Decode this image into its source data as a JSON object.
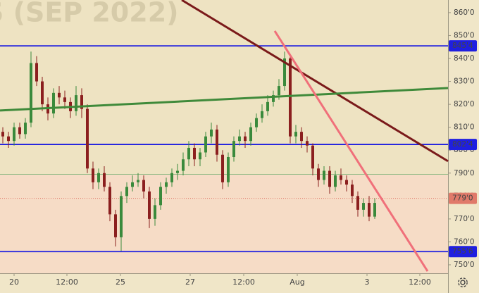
{
  "chart_data": {
    "type": "candlestick",
    "title": "S (SEP 2022)",
    "x": [
      1,
      3,
      5,
      7,
      9,
      11,
      13,
      15,
      17,
      19,
      21,
      23,
      25,
      27,
      29,
      31,
      33,
      35,
      37,
      39,
      41,
      43,
      45,
      47,
      49,
      51,
      53,
      55,
      57,
      59,
      61,
      63,
      65,
      67,
      69,
      71,
      73,
      75,
      77,
      79,
      81,
      83,
      85,
      87,
      89,
      91,
      93,
      95,
      97,
      99,
      101,
      103,
      105,
      107,
      109,
      111,
      113,
      115,
      117,
      119,
      121,
      123,
      125,
      127,
      129,
      131,
      133
    ],
    "open": [
      808,
      806,
      804,
      810,
      807,
      812,
      838,
      830,
      820,
      816,
      825,
      823,
      821,
      817,
      824,
      818,
      792,
      786,
      790,
      784,
      772,
      762,
      780,
      784,
      786,
      787,
      782,
      770,
      776,
      784,
      786,
      790,
      791,
      796,
      801,
      796,
      799,
      806,
      809,
      798,
      786,
      797,
      804,
      806,
      804,
      810,
      814,
      817,
      821,
      824,
      828,
      840,
      806,
      808,
      804,
      802,
      792,
      787,
      791,
      784,
      789,
      787,
      785,
      780,
      774,
      777,
      771
    ],
    "close": [
      806,
      804,
      810,
      807,
      812,
      838,
      830,
      820,
      816,
      825,
      823,
      821,
      817,
      824,
      818,
      792,
      786,
      790,
      784,
      772,
      762,
      780,
      784,
      786,
      787,
      782,
      770,
      776,
      784,
      786,
      790,
      791,
      796,
      801,
      796,
      799,
      806,
      809,
      798,
      786,
      797,
      804,
      806,
      804,
      810,
      814,
      817,
      821,
      824,
      828,
      840,
      806,
      808,
      804,
      802,
      792,
      787,
      791,
      784,
      789,
      787,
      785,
      780,
      774,
      777,
      771,
      777
    ],
    "high": [
      810,
      808,
      812,
      812,
      814,
      843,
      841,
      832,
      823,
      827,
      828,
      826,
      823,
      828,
      827,
      820,
      795,
      792,
      793,
      786,
      774,
      782,
      786,
      789,
      790,
      789,
      784,
      779,
      786,
      788,
      792,
      794,
      799,
      804,
      803,
      801,
      808,
      812,
      811,
      800,
      799,
      806,
      809,
      808,
      812,
      816,
      820,
      824,
      826,
      831,
      843,
      841,
      811,
      810,
      806,
      803,
      794,
      793,
      793,
      791,
      792,
      789,
      787,
      782,
      779,
      780,
      779
    ],
    "low": [
      803,
      801,
      802,
      805,
      805,
      810,
      828,
      817,
      813,
      814,
      820,
      818,
      814,
      815,
      814,
      790,
      783,
      783,
      782,
      769,
      758,
      756,
      777,
      782,
      784,
      779,
      766,
      767,
      774,
      781,
      784,
      787,
      789,
      793,
      793,
      793,
      797,
      803,
      795,
      783,
      784,
      795,
      802,
      801,
      802,
      808,
      812,
      815,
      819,
      822,
      826,
      803,
      803,
      801,
      799,
      789,
      784,
      785,
      781,
      782,
      785,
      782,
      777,
      771,
      771,
      769,
      770
    ],
    "up_color": "#3a8a3c",
    "down_color": "#8b1f1f",
    "xlim": [
      0,
      159
    ],
    "ylim": [
      737.7,
      865.5
    ],
    "xticks": [
      {
        "value": 5,
        "label": "20"
      },
      {
        "value": 23.75,
        "label": "12:00"
      },
      {
        "value": 42.75,
        "label": "25"
      },
      {
        "value": 67.5,
        "label": "27"
      },
      {
        "value": 86.5,
        "label": "12:00"
      },
      {
        "value": 105.5,
        "label": "Aug"
      },
      {
        "value": 130.25,
        "label": "3"
      },
      {
        "value": 149,
        "label": "12:00"
      }
    ],
    "yticks": [
      {
        "value": 750,
        "label": "750'0"
      },
      {
        "value": 760,
        "label": "760'0"
      },
      {
        "value": 770,
        "label": "770'0"
      },
      {
        "value": 780,
        "label": "780'0"
      },
      {
        "value": 790,
        "label": "790'0"
      },
      {
        "value": 800,
        "label": "800'0"
      },
      {
        "value": 810,
        "label": "810'0"
      },
      {
        "value": 820,
        "label": "820'0"
      },
      {
        "value": 830,
        "label": "830'0"
      },
      {
        "value": 840,
        "label": "840'0"
      },
      {
        "value": 850,
        "label": "850'0"
      },
      {
        "value": 860,
        "label": "860'0"
      }
    ],
    "price_lines": [
      {
        "value": 845.5,
        "label": "845'4",
        "color": "#1f1fe0"
      },
      {
        "value": 802.5,
        "label": "802'4",
        "color": "#1f1fe0"
      },
      {
        "value": 755.75,
        "label": "755'6",
        "color": "#1f1fe0"
      },
      {
        "value": 779,
        "label": "779'0",
        "color": "#e07a6a"
      }
    ],
    "zone_split": 789.5,
    "drawings": [
      {
        "color": "#7a1a1a",
        "x": [
          64.5,
          159
        ],
        "y": [
          865.5,
          795.2
        ]
      },
      {
        "color": "#3f8a3a",
        "x": [
          0,
          159
        ],
        "y": [
          817.3,
          827.1
        ]
      },
      {
        "color": "#f0707a",
        "x": [
          97.5,
          151.75
        ],
        "y": [
          852,
          747.2
        ]
      }
    ]
  }
}
